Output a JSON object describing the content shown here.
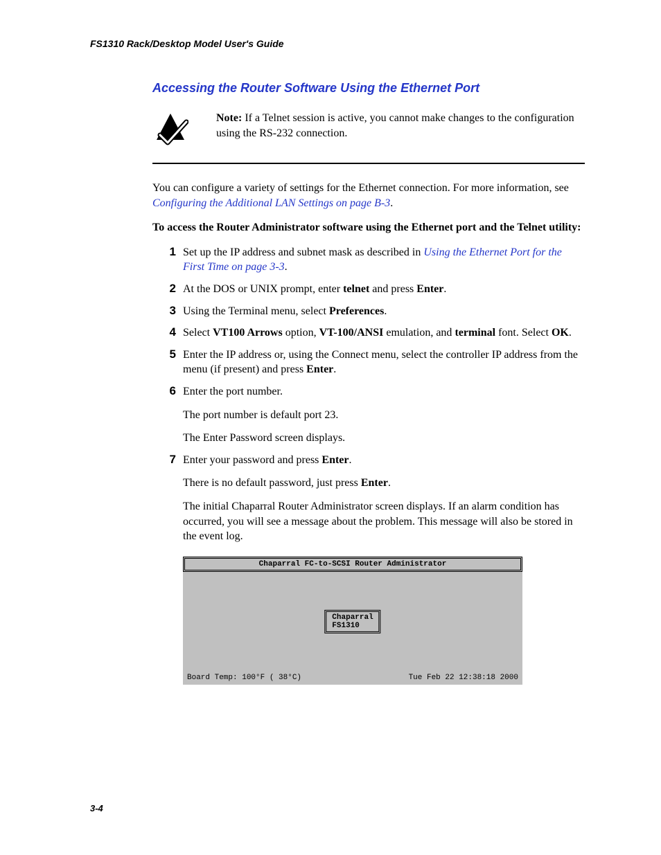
{
  "colors": {
    "link": "#2436c8",
    "terminal_bg": "#c0c0c0",
    "text": "#000000"
  },
  "typography": {
    "body_font": "Times New Roman",
    "heading_font": "Arial",
    "mono_font": "Courier New",
    "body_size_pt": 12,
    "heading_size_pt": 14
  },
  "header": {
    "running_head": "FS1310 Rack/Desktop Model User's Guide"
  },
  "section": {
    "title": "Accessing the Router Software Using the Ethernet Port"
  },
  "note": {
    "label": "Note:",
    "text": " If a Telnet session is active, you cannot make changes to the configuration using the RS-232 connection."
  },
  "intro": {
    "pre": "You can configure a variety of settings for the Ethernet connection. For more information, see ",
    "link": "Configuring the Additional LAN Settings on page B-3",
    "post": "."
  },
  "lead": "To access the Router Administrator software using the Ethernet port and the Telnet utility:",
  "steps": [
    {
      "n": "1",
      "parts": [
        {
          "t": "Set up the IP address and subnet mask as described in "
        },
        {
          "t": "Using the Ethernet Port for the First Time on page 3-3",
          "link": true
        },
        {
          "t": "."
        }
      ]
    },
    {
      "n": "2",
      "parts": [
        {
          "t": "At the DOS or UNIX prompt, enter "
        },
        {
          "t": "telnet",
          "b": true
        },
        {
          "t": " and press "
        },
        {
          "t": "Enter",
          "b": true
        },
        {
          "t": "."
        }
      ]
    },
    {
      "n": "3",
      "parts": [
        {
          "t": "Using the Terminal menu, select "
        },
        {
          "t": "Preferences",
          "b": true
        },
        {
          "t": "."
        }
      ]
    },
    {
      "n": "4",
      "parts": [
        {
          "t": "Select "
        },
        {
          "t": "VT100 Arrows",
          "b": true
        },
        {
          "t": " option, "
        },
        {
          "t": "VT-100/ANSI",
          "b": true
        },
        {
          "t": " emulation, and "
        },
        {
          "t": "terminal",
          "b": true
        },
        {
          "t": " font. Select "
        },
        {
          "t": "OK",
          "b": true
        },
        {
          "t": "."
        }
      ]
    },
    {
      "n": "5",
      "parts": [
        {
          "t": "Enter the IP address or, using the Connect menu, select the controller IP address from the menu (if present) and press "
        },
        {
          "t": "Enter",
          "b": true
        },
        {
          "t": "."
        }
      ]
    },
    {
      "n": "6",
      "parts": [
        {
          "t": "Enter the port number."
        }
      ],
      "after": [
        "The port number is default port 23.",
        "The Enter Password screen displays."
      ]
    },
    {
      "n": "7",
      "parts": [
        {
          "t": "Enter your password and press "
        },
        {
          "t": "Enter",
          "b": true
        },
        {
          "t": "."
        }
      ],
      "after_rich": [
        [
          {
            "t": "There is no default password, just press "
          },
          {
            "t": "Enter",
            "b": true
          },
          {
            "t": "."
          }
        ],
        [
          {
            "t": "The initial Chaparral Router Administrator screen displays. If an alarm condition has occurred, you will see a message about the problem. This message will also be stored in the event log."
          }
        ]
      ]
    }
  ],
  "terminal": {
    "title": "Chaparral FC-to-SCSI Router Administrator",
    "box_line1": "Chaparral",
    "box_line2": "FS1310",
    "status_left": "Board Temp: 100°F ( 38°C)",
    "status_right": "Tue Feb 22 12:38:18 2000"
  },
  "footer": {
    "page": "3-4"
  }
}
